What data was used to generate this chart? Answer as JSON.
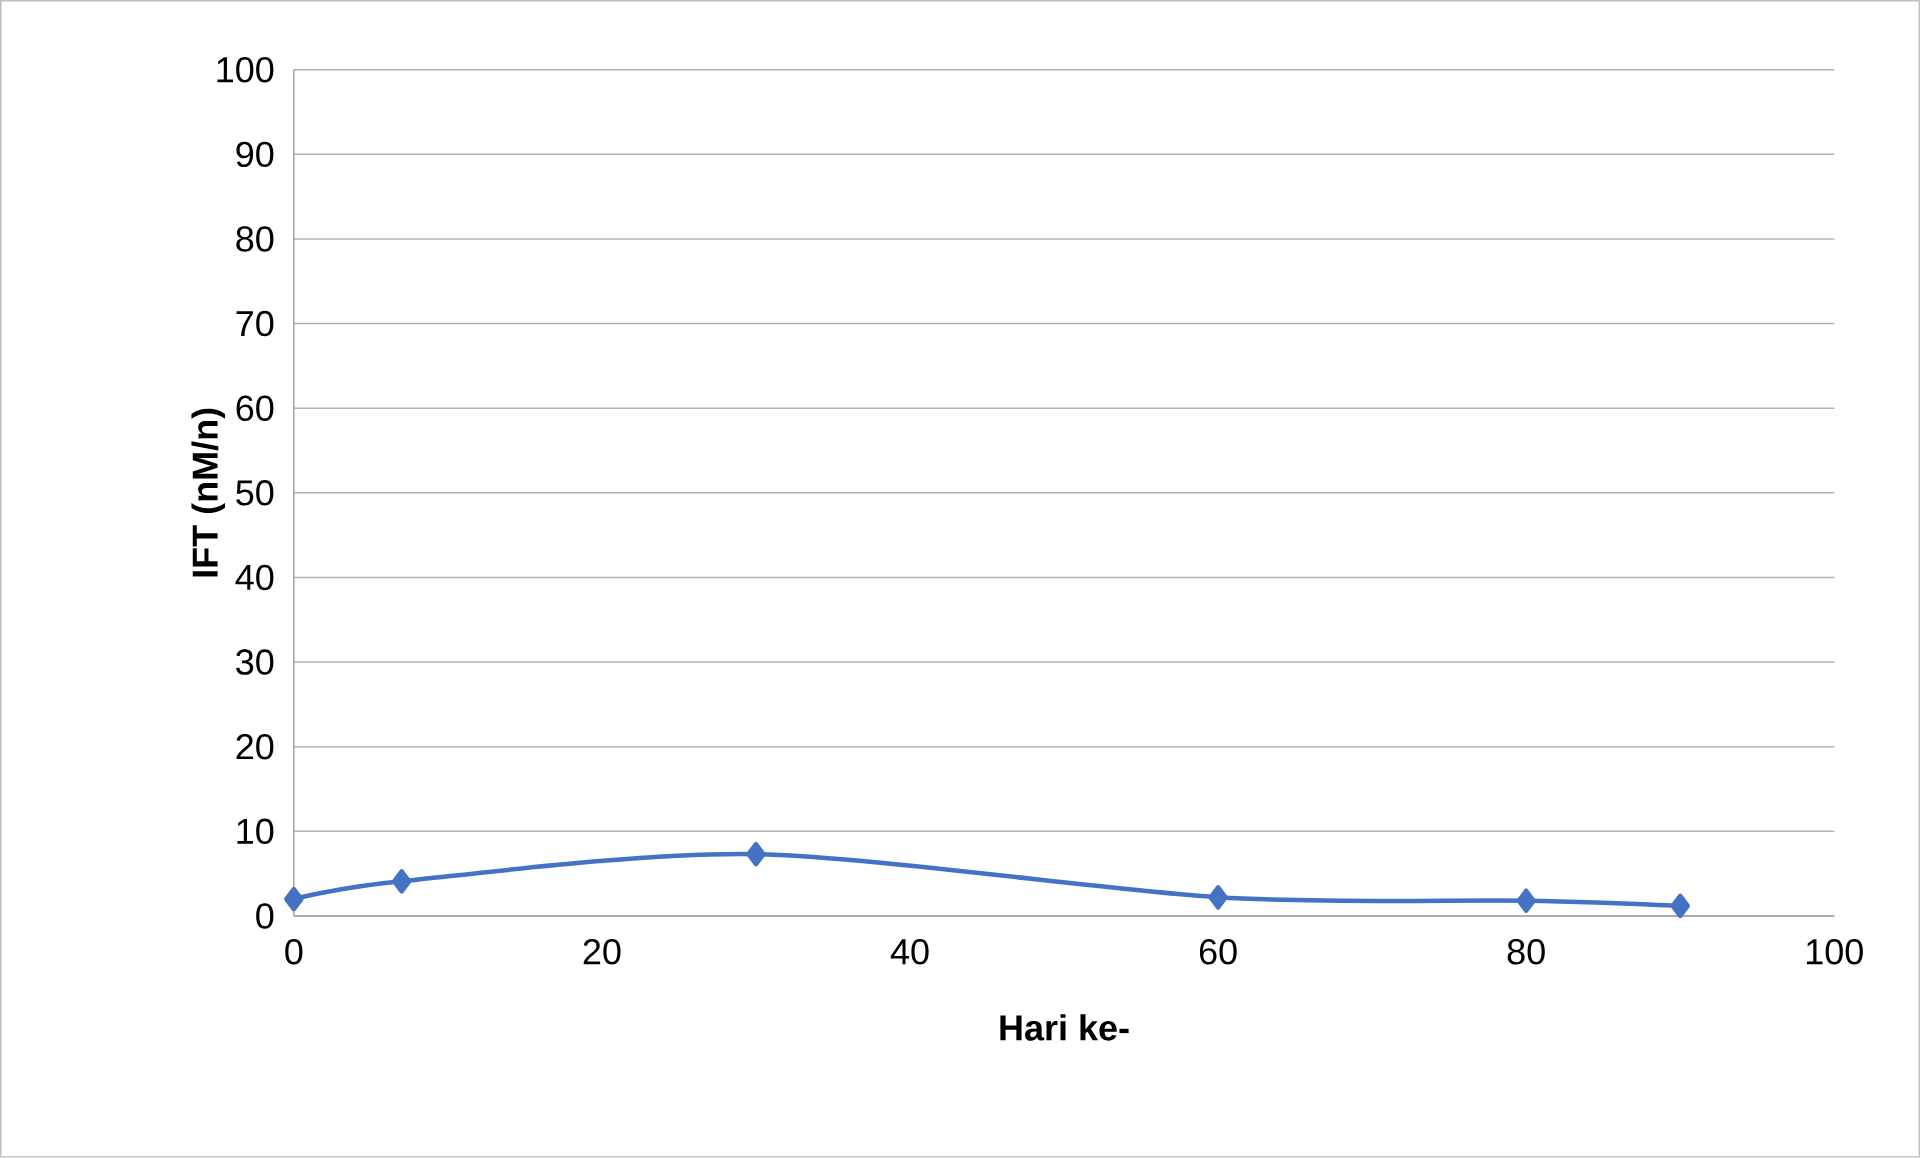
{
  "chart_data": {
    "type": "line",
    "xlabel": "Hari ke-",
    "ylabel": "IFT  (nM/n)",
    "x": [
      0,
      7,
      30,
      60,
      80,
      90
    ],
    "series": [
      {
        "color": "#4472c4",
        "values": [
          2.0,
          4.1,
          7.3,
          2.2,
          1.8,
          1.2
        ]
      }
    ],
    "xlim": [
      0,
      100
    ],
    "xticks": [
      0,
      20,
      40,
      60,
      80,
      100
    ],
    "ylim": [
      0,
      100
    ],
    "yticks": [
      0,
      10,
      20,
      30,
      40,
      50,
      60,
      70,
      80,
      90,
      100
    ],
    "grid": "y",
    "marker": "diamond",
    "line_style": "solid"
  }
}
